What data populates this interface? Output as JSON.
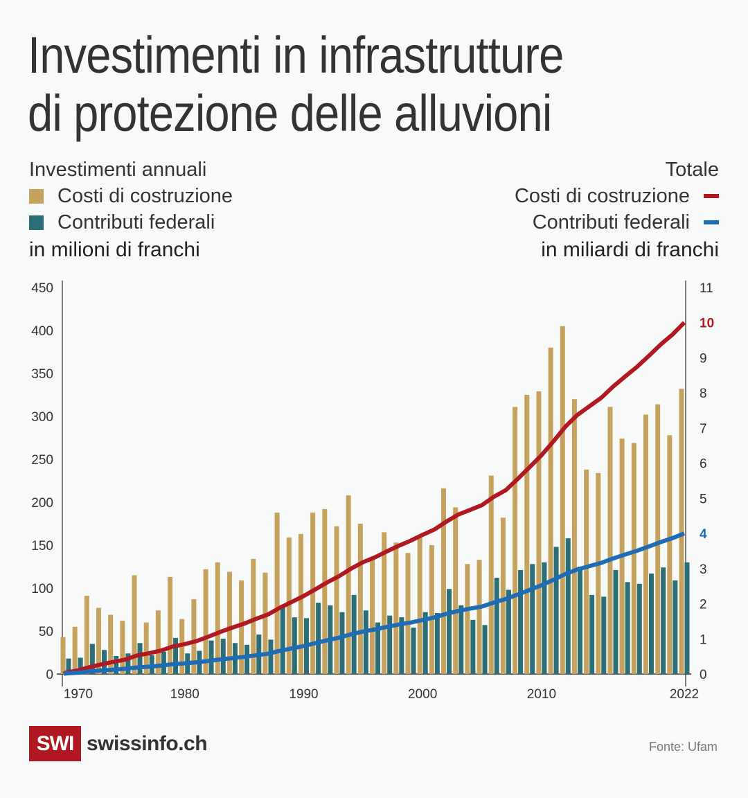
{
  "title_line1": "Investimenti in infrastrutture",
  "title_line2": "di protezione delle alluvioni",
  "legend_left": {
    "heading": "Investimenti annuali",
    "items": [
      {
        "label": "Costi di costruzione",
        "color": "#c6a25f"
      },
      {
        "label": "Contributi federali",
        "color": "#2c6e76"
      }
    ],
    "unit": "in milioni di franchi"
  },
  "legend_right": {
    "heading": "Totale",
    "items": [
      {
        "label": "Costi di costruzione",
        "color": "#b01822"
      },
      {
        "label": "Contributi federali",
        "color": "#1d6cb5"
      }
    ],
    "unit": "in miliardi di franchi"
  },
  "footer": {
    "logo": "SWI",
    "brand": "swissinfo.ch",
    "source": "Fonte: Ufam"
  },
  "chart_data": {
    "type": "bar",
    "title": "Investimenti in infrastrutture di protezione delle alluvioni",
    "categories": [
      1970,
      1971,
      1972,
      1973,
      1974,
      1975,
      1976,
      1977,
      1978,
      1979,
      1980,
      1981,
      1982,
      1983,
      1984,
      1985,
      1986,
      1987,
      1988,
      1989,
      1990,
      1991,
      1992,
      1993,
      1994,
      1995,
      1996,
      1997,
      1998,
      1999,
      2000,
      2001,
      2002,
      2003,
      2004,
      2005,
      2006,
      2007,
      2008,
      2009,
      2010,
      2011,
      2012,
      2013,
      2014,
      2015,
      2016,
      2017,
      2018,
      2019,
      2020,
      2021,
      2022
    ],
    "x_tick_labels": [
      "1970",
      "1980",
      "1990",
      "2000",
      "2010",
      "2022"
    ],
    "series": [
      {
        "name": "Costi di costruzione",
        "axis": "left",
        "type": "bar",
        "color": "#c6a25f",
        "values": [
          43,
          55,
          91,
          77,
          69,
          62,
          115,
          60,
          74,
          113,
          64,
          87,
          122,
          130,
          119,
          109,
          134,
          118,
          188,
          159,
          163,
          188,
          192,
          172,
          208,
          175,
          133,
          165,
          153,
          141,
          161,
          150,
          216,
          194,
          128,
          133,
          231,
          182,
          311,
          325,
          329,
          380,
          405,
          320,
          238,
          234,
          311,
          274,
          269,
          302,
          314,
          278,
          332
        ]
      },
      {
        "name": "Contributi federali",
        "axis": "left",
        "type": "bar",
        "color": "#2c6e76",
        "values": [
          18,
          19,
          35,
          28,
          21,
          24,
          36,
          22,
          26,
          42,
          24,
          27,
          39,
          41,
          36,
          34,
          46,
          40,
          80,
          66,
          65,
          83,
          80,
          72,
          92,
          74,
          60,
          68,
          66,
          54,
          72,
          71,
          99,
          80,
          63,
          57,
          112,
          98,
          121,
          128,
          130,
          148,
          158,
          125,
          92,
          90,
          121,
          107,
          105,
          117,
          124,
          109,
          130
        ]
      },
      {
        "name": "Totale costi di costruzione",
        "axis": "right",
        "type": "line",
        "color": "#b01822",
        "end_value": 10
      },
      {
        "name": "Totale contributi federali",
        "axis": "right",
        "type": "line",
        "color": "#1d6cb5",
        "end_value": 4
      }
    ],
    "y_left": {
      "label": "in milioni di franchi",
      "ylim": [
        0,
        450
      ],
      "ticks": [
        0,
        50,
        100,
        150,
        200,
        250,
        300,
        350,
        400,
        450
      ]
    },
    "y_right": {
      "label": "in miliardi di franchi",
      "ylim": [
        0,
        11
      ],
      "ticks": [
        0,
        1,
        2,
        3,
        4,
        5,
        6,
        7,
        8,
        9,
        10,
        11
      ],
      "highlight": {
        "10": "#b01822",
        "4": "#1d6cb5"
      }
    },
    "grid": false,
    "legend": "top"
  }
}
